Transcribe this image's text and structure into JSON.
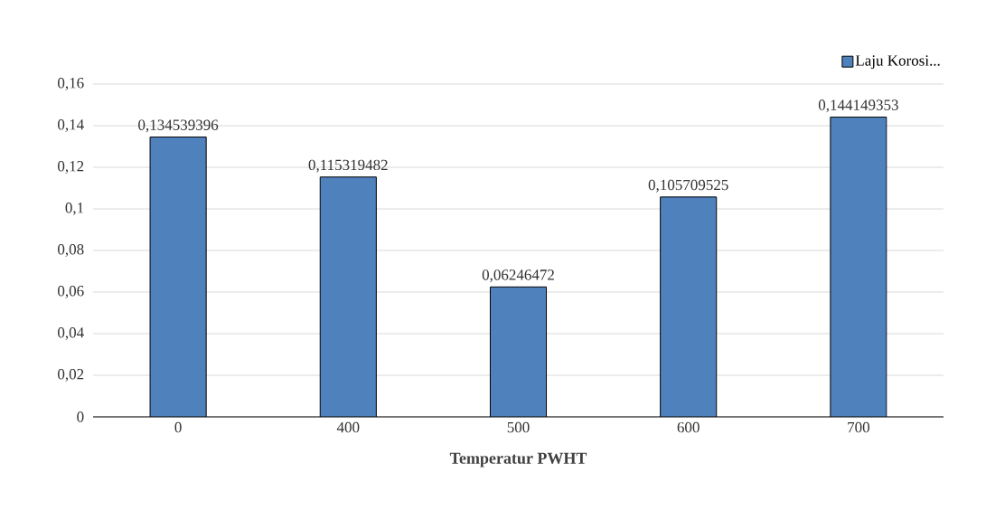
{
  "chart_data": {
    "type": "bar",
    "xlabel": "Temperatur PWHT",
    "categories": [
      "0",
      "400",
      "500",
      "600",
      "700"
    ],
    "series": [
      {
        "name": "Laju Korosi...",
        "color": "#4f81bd",
        "values": [
          0.134539396,
          0.115319482,
          0.06246472,
          0.105709525,
          0.144149353
        ],
        "value_labels": [
          "0,134539396",
          "0,115319482",
          "0,06246472",
          "0,105709525",
          "0,144149353"
        ]
      }
    ],
    "ylim": [
      0,
      0.16
    ],
    "yticks": [
      0,
      {
        "value": 0.02,
        "label": "0,02"
      },
      {
        "value": 0.04,
        "label": "0,04"
      },
      {
        "value": 0.06,
        "label": "0,06"
      },
      {
        "value": 0.08,
        "label": "0,08"
      },
      {
        "value": 0.1,
        "label": "0,1"
      },
      {
        "value": 0.12,
        "label": "0,12"
      },
      {
        "value": 0.14,
        "label": "0,14"
      },
      {
        "value": 0.16,
        "label": "0,16"
      }
    ],
    "grid": "y",
    "legend": "top right"
  }
}
